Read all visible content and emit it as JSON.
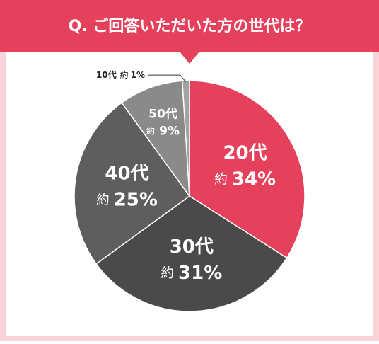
{
  "chart_data": {
    "type": "pie",
    "title": "Q. ご回答いただいた方の世代は？",
    "categories": [
      "20代",
      "30代",
      "40代",
      "50代",
      "10代"
    ],
    "values": [
      34,
      31,
      25,
      9,
      1
    ],
    "value_labels": [
      "34%",
      "31%",
      "25%",
      "9%",
      "1%"
    ],
    "approx_prefix": "約",
    "colors": [
      "#e5405c",
      "#4a4a4a",
      "#5e5e5e",
      "#8a8a8a",
      "#a3a3a3"
    ]
  }
}
